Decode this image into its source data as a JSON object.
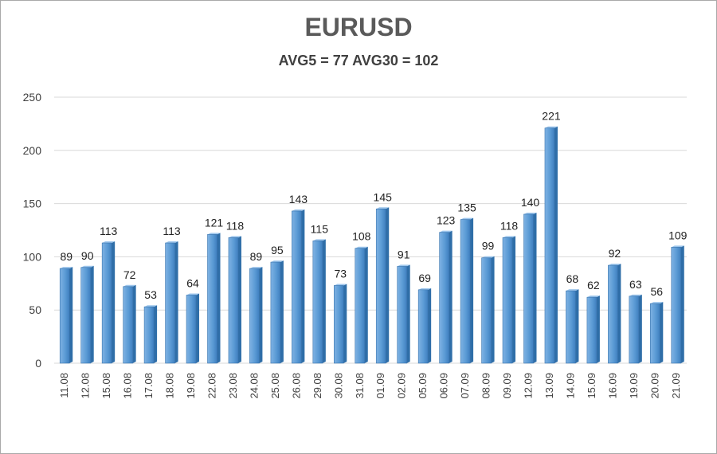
{
  "chart_data": {
    "type": "bar",
    "title": "EURUSD",
    "subtitle": "AVG5 = 77 AVG30 = 102",
    "xlabel": "",
    "ylabel": "",
    "ylim": [
      0,
      250
    ],
    "yticks": [
      0,
      50,
      100,
      150,
      200,
      250
    ],
    "grid": true,
    "legend": "none",
    "bar_color": "#5b9bd5",
    "categories": [
      "11.08",
      "12.08",
      "15.08",
      "16.08",
      "17.08",
      "18.08",
      "19.08",
      "22.08",
      "23.08",
      "24.08",
      "25.08",
      "26.08",
      "29.08",
      "30.08",
      "31.08",
      "01.09",
      "02.09",
      "05.09",
      "06.09",
      "07.09",
      "08.09",
      "09.09",
      "12.09",
      "13.09",
      "14.09",
      "15.09",
      "16.09",
      "19.09",
      "20.09",
      "21.09"
    ],
    "values": [
      89,
      90,
      113,
      72,
      53,
      113,
      64,
      121,
      118,
      89,
      95,
      143,
      115,
      73,
      108,
      145,
      91,
      69,
      123,
      135,
      99,
      118,
      140,
      221,
      68,
      62,
      92,
      63,
      56,
      109
    ]
  }
}
